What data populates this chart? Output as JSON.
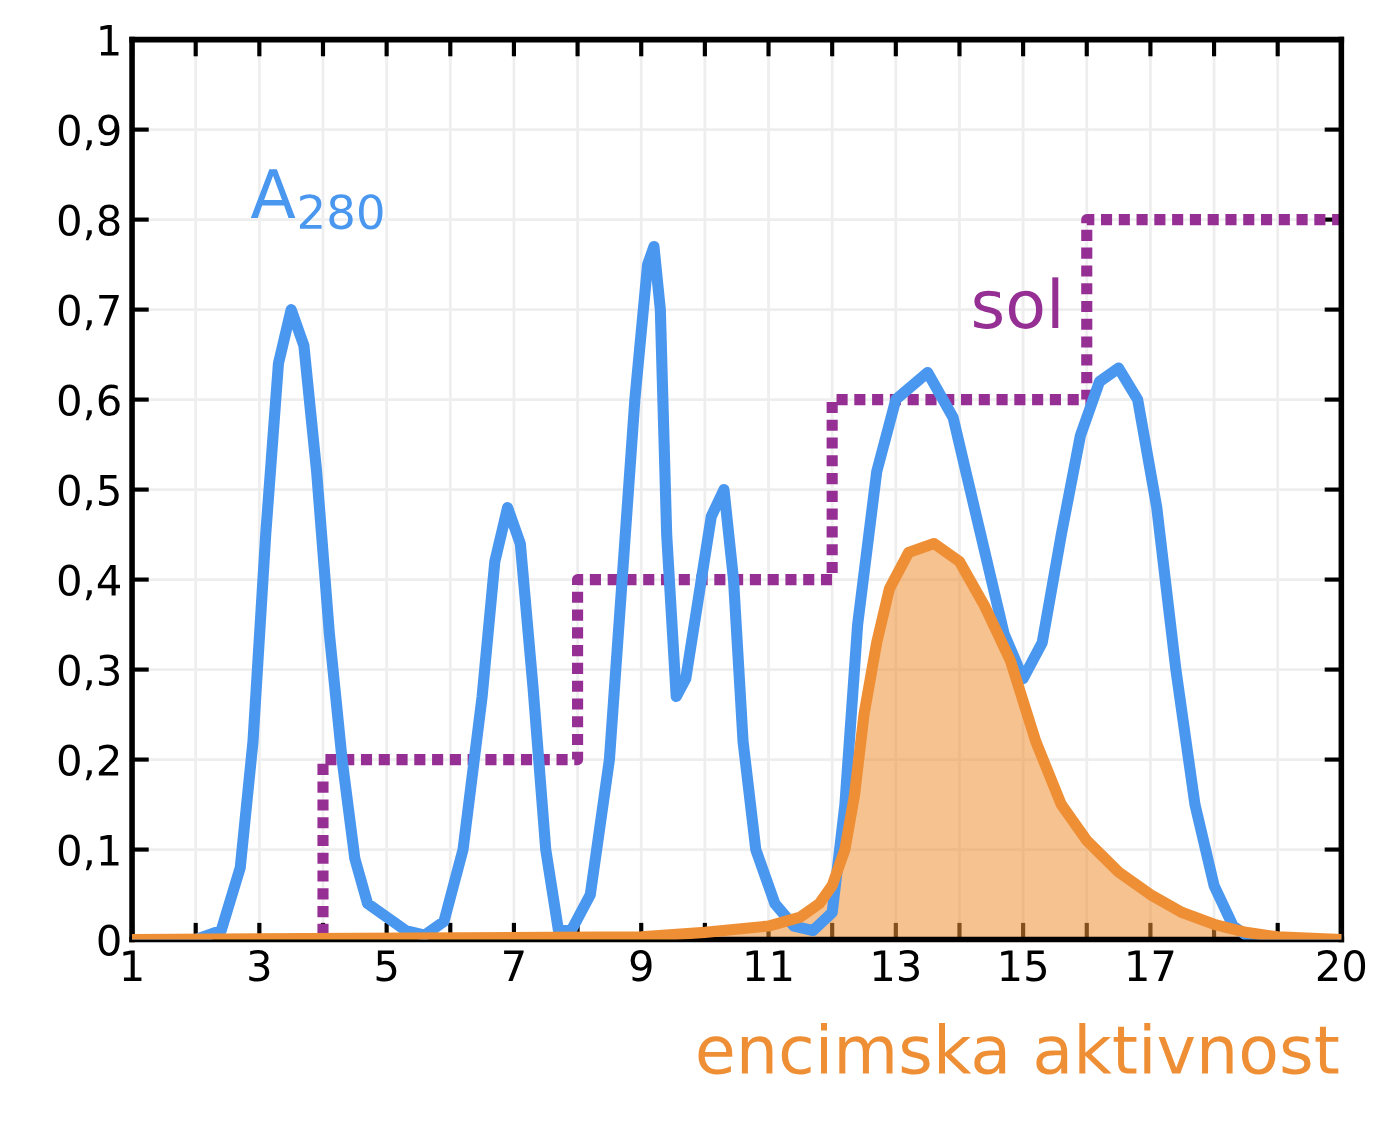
{
  "chart_data": {
    "type": "line",
    "xlim": [
      1,
      20
    ],
    "xticks": [
      1,
      {
        "value": 2,
        "label": null
      },
      3,
      {
        "value": 4,
        "label": null
      },
      5,
      {
        "value": 6,
        "label": null
      },
      7,
      {
        "value": 8,
        "label": null
      },
      9,
      {
        "value": 10,
        "label": null
      },
      11,
      {
        "value": 12,
        "label": null
      },
      13,
      {
        "value": 14,
        "label": null
      },
      15,
      {
        "value": 16,
        "label": null
      },
      17,
      {
        "value": 18,
        "label": null
      },
      {
        "value": 19,
        "label": null
      },
      20
    ],
    "ylim": [
      0,
      1
    ],
    "yticks": [
      0,
      {
        "value": 0.1,
        "label": "0,1"
      },
      {
        "value": 0.2,
        "label": "0,2"
      },
      {
        "value": 0.3,
        "label": "0,3"
      },
      {
        "value": 0.4,
        "label": "0,4"
      },
      {
        "value": 0.5,
        "label": "0,5"
      },
      {
        "value": 0.6,
        "label": "0,6"
      },
      {
        "value": 0.7,
        "label": "0,7"
      },
      {
        "value": 0.8,
        "label": "0,8"
      },
      {
        "value": 0.9,
        "label": "0,9"
      },
      1
    ],
    "grid": true,
    "marker": "none",
    "series": [
      {
        "name": "encimska aktivnost",
        "type": "area",
        "color": "#ee8f35",
        "x": [
          1,
          9,
          10,
          11,
          11.5,
          11.8,
          12.0,
          12.2,
          12.35,
          12.5,
          12.7,
          12.9,
          13.2,
          13.6,
          14.0,
          14.4,
          14.8,
          15.2,
          15.6,
          16.0,
          16.5,
          17.0,
          17.5,
          18.0,
          18.5,
          19,
          20
        ],
        "values": [
          0,
          0.003,
          0.008,
          0.015,
          0.025,
          0.04,
          0.06,
          0.1,
          0.16,
          0.25,
          0.33,
          0.39,
          0.43,
          0.44,
          0.42,
          0.37,
          0.31,
          0.22,
          0.15,
          0.11,
          0.075,
          0.05,
          0.03,
          0.017,
          0.008,
          0.003,
          0
        ]
      },
      {
        "name": "A$_{280}$",
        "color": "#4a97f0",
        "line_style": "solid",
        "x": [
          1.0,
          2.0,
          2.4,
          2.7,
          2.9,
          3.1,
          3.3,
          3.5,
          3.7,
          3.9,
          4.1,
          4.3,
          4.5,
          4.7,
          5.0,
          5.3,
          5.6,
          5.9,
          6.2,
          6.5,
          6.7,
          6.9,
          7.1,
          7.3,
          7.5,
          7.7,
          7.9,
          8.2,
          8.5,
          8.7,
          8.9,
          9.1,
          9.2,
          9.3,
          9.4,
          9.55,
          9.7,
          9.9,
          10.1,
          10.3,
          10.45,
          10.6,
          10.8,
          11.1,
          11.4,
          11.7,
          12.0,
          12.2,
          12.4,
          12.7,
          13.0,
          13.5,
          13.9,
          14.3,
          14.7,
          15.0,
          15.3,
          15.6,
          15.9,
          16.2,
          16.5,
          16.8,
          17.1,
          17.4,
          17.7,
          18.0,
          18.3,
          18.6,
          20
        ],
        "values": [
          0,
          0,
          0.01,
          0.08,
          0.22,
          0.45,
          0.64,
          0.7,
          0.66,
          0.52,
          0.34,
          0.2,
          0.09,
          0.04,
          0.025,
          0.01,
          0.005,
          0.02,
          0.1,
          0.27,
          0.42,
          0.48,
          0.44,
          0.28,
          0.1,
          0.01,
          0.01,
          0.05,
          0.2,
          0.4,
          0.6,
          0.75,
          0.77,
          0.7,
          0.45,
          0.27,
          0.29,
          0.38,
          0.47,
          0.5,
          0.4,
          0.22,
          0.1,
          0.04,
          0.015,
          0.01,
          0.03,
          0.15,
          0.35,
          0.52,
          0.6,
          0.63,
          0.58,
          0.46,
          0.34,
          0.29,
          0.33,
          0.45,
          0.56,
          0.62,
          0.635,
          0.6,
          0.48,
          0.3,
          0.15,
          0.06,
          0.015,
          0,
          0
        ]
      },
      {
        "name": "sol",
        "type": "step",
        "color": "#952f94",
        "line_style": "dotted",
        "x": [
          1,
          4,
          8,
          12,
          16,
          20
        ],
        "values": [
          0,
          0.2,
          0.4,
          0.6,
          0.8,
          0.8
        ]
      }
    ]
  }
}
